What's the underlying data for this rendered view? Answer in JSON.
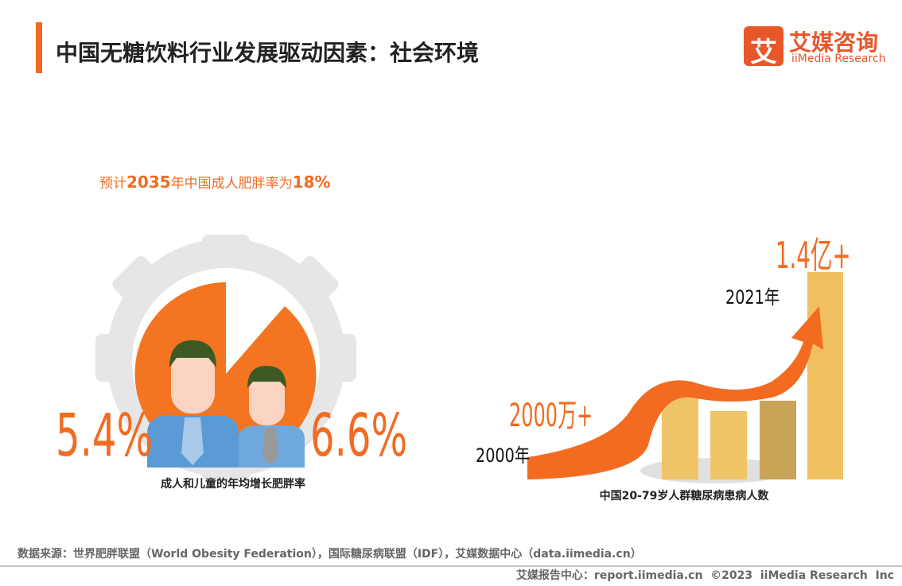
{
  "header": {
    "title": "中国无糖饮料行业发展驱动因素：社会环境",
    "logo_mark": "艾",
    "logo_name": "艾媒咨询",
    "logo_en": "iiMedia Research"
  },
  "obesity": {
    "headline": [
      "预计",
      "2035",
      "年中国成人肥胖率为",
      "18%"
    ],
    "adult_rate": "5.4%",
    "child_rate": "6.6%",
    "caption": "成人和儿童的年均增长肥胖率"
  },
  "diabetes": {
    "start_value": "2000万+",
    "start_year": "2000年",
    "end_value": "1.4亿+",
    "end_year": "2021年",
    "caption": "中国20-79岁人群糖尿病患病人数"
  },
  "footer": {
    "source": "数据来源：世界肥胖联盟（World Obesity Federation），国际糖尿病联盟（IDF），艾媒数据中心（data.iimedia.cn）",
    "copyright": "艾媒报告中心：report.iimedia.cn  ©2023  iiMedia Research  Inc"
  }
}
